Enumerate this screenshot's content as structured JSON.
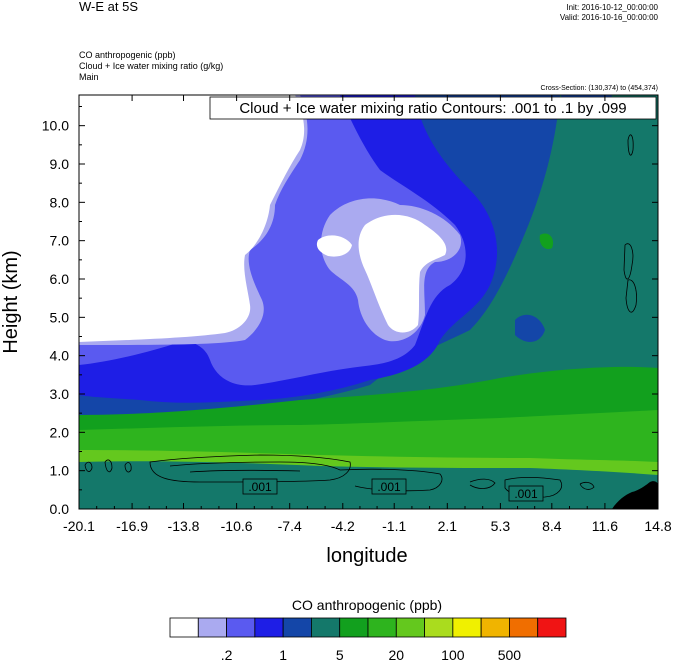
{
  "header": {
    "title": "W-E at 5S",
    "init": "Init: 2016-10-12_00:00:00",
    "valid": "Valid: 2016-10-16_00:00:00",
    "field1": "CO anthropogenic   (ppb)",
    "field2": "Cloud + Ice water mixing ratio   (g/kg)",
    "field3": "Main",
    "cross_section": "Cross-Section: (130,374) to (454,374)"
  },
  "contour_info": "Cloud + Ice water mixing ratio Contours: .001 to .1 by .099",
  "contour_labels": [
    ".001",
    ".001",
    ".001"
  ],
  "colors": {
    "white": "#ffffff",
    "lavender": "#aaaaf0",
    "medium_blue": "#5a5af0",
    "blue": "#1e1ee6",
    "dark_blue": "#1446a8",
    "teal": "#14786a",
    "green_dark": "#12a01e",
    "green": "#2eb41e",
    "lime": "#64c81e",
    "yellow_green": "#aadc1e",
    "yellow": "#f0f000",
    "orange": "#f0b400",
    "orange_red": "#f06e00",
    "red": "#f01414"
  },
  "chart_data": {
    "type": "heatmap",
    "xlabel": "longitude",
    "ylabel": "Height (km)",
    "x_ticks": [
      "-20.1",
      "-16.9",
      "-13.8",
      "-10.6",
      "-7.4",
      "-4.2",
      "-1.1",
      "2.1",
      "5.3",
      "8.4",
      "11.6",
      "14.8"
    ],
    "y_ticks": [
      "0.0",
      "1.0",
      "2.0",
      "3.0",
      "4.0",
      "5.0",
      "6.0",
      "7.0",
      "8.0",
      "9.0",
      "10.0"
    ],
    "xlim": [
      -20.1,
      14.8
    ],
    "ylim": [
      0,
      10.8
    ],
    "colorbar": {
      "title": "CO anthropogenic  (ppb)",
      "tick_labels": [
        ".2",
        "1",
        "5",
        "20",
        "100",
        "500"
      ],
      "colors": [
        "#ffffff",
        "#aaaaf0",
        "#5a5af0",
        "#1e1ee6",
        "#1446a8",
        "#14786a",
        "#12a01e",
        "#2eb41e",
        "#64c81e",
        "#aadc1e",
        "#f0f000",
        "#f0b400",
        "#f06e00",
        "#f01414"
      ]
    }
  }
}
